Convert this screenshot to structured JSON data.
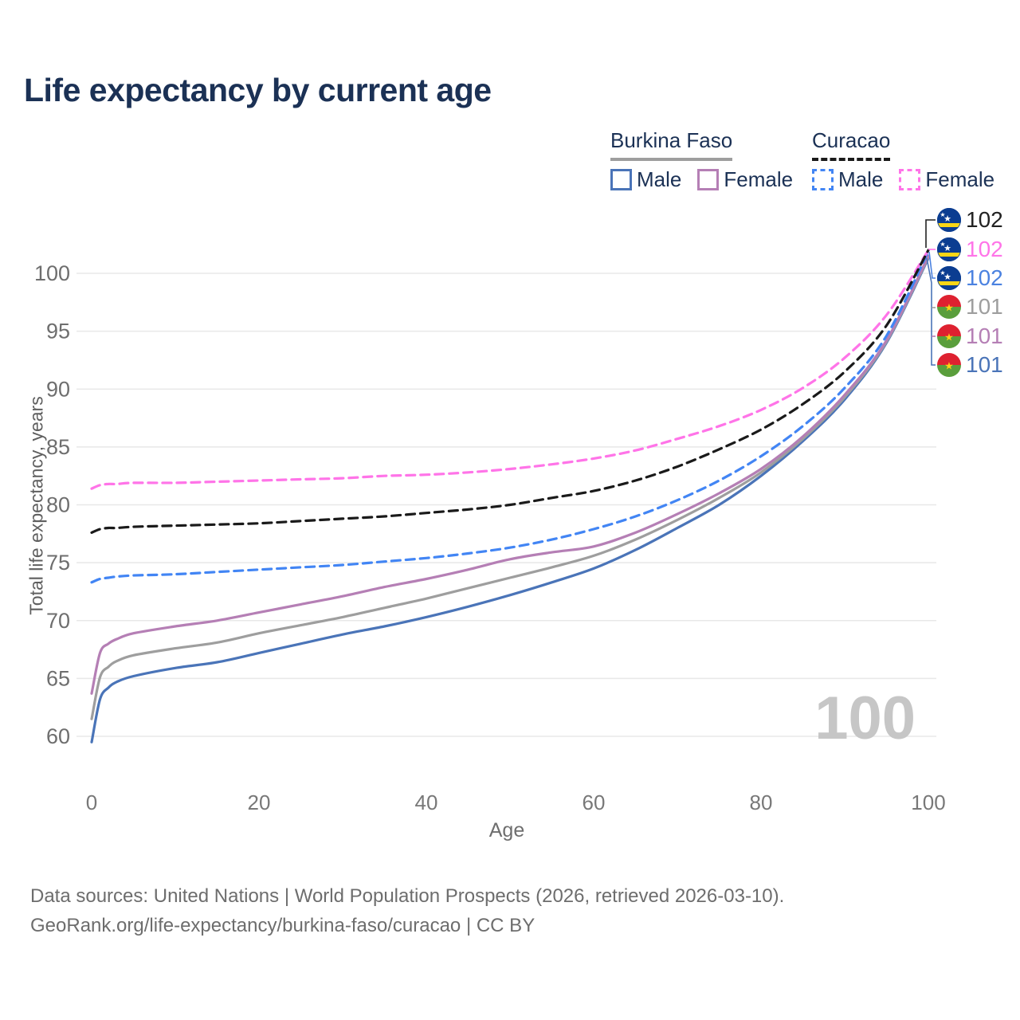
{
  "title": "Life expectancy by current age",
  "legend": {
    "groups": [
      {
        "name": "Burkina Faso",
        "underline": {
          "style": "solid",
          "color": "#9e9e9e"
        },
        "items": [
          {
            "label": "Male",
            "color": "#4a74b8",
            "dash": false
          },
          {
            "label": "Female",
            "color": "#b57fb5",
            "dash": false
          }
        ]
      },
      {
        "name": "Curacao",
        "underline": {
          "style": "dashed",
          "color": "#1a1a1a"
        },
        "items": [
          {
            "label": "Male",
            "color": "#4285f4",
            "dash": true
          },
          {
            "label": "Female",
            "color": "#ff74e8",
            "dash": true
          }
        ]
      }
    ]
  },
  "end_labels": {
    "rows": [
      {
        "flag": "curacao",
        "value": "102",
        "color": "#222222"
      },
      {
        "flag": "curacao",
        "value": "102",
        "color": "#ff74e8"
      },
      {
        "flag": "curacao",
        "value": "102",
        "color": "#4b82e0"
      },
      {
        "flag": "burkina-faso",
        "value": "101",
        "color": "#9e9e9e"
      },
      {
        "flag": "burkina-faso",
        "value": "101",
        "color": "#b57fb5"
      },
      {
        "flag": "burkina-faso",
        "value": "101",
        "color": "#4a74b8"
      }
    ]
  },
  "watermark": "100",
  "footer": {
    "line1": "Data sources: United Nations | World Population Prospects (2026, retrieved 2026-03-10).",
    "line2": "GeoRank.org/life-expectancy/burkina-faso/curacao | CC BY"
  },
  "chart_data": {
    "type": "line",
    "title": "Life expectancy by current age",
    "xlabel": "Age",
    "ylabel": "Total life expectancy, years",
    "xlim": [
      0,
      100
    ],
    "ylim": [
      60,
      100
    ],
    "x_ticks": [
      0,
      20,
      40,
      60,
      80,
      100
    ],
    "y_ticks": [
      60,
      65,
      70,
      75,
      80,
      85,
      90,
      95,
      100
    ],
    "grid": "horizontal-only",
    "legend_position": "top-right",
    "x": [
      0,
      1,
      2,
      3,
      5,
      10,
      15,
      20,
      25,
      30,
      35,
      40,
      45,
      50,
      55,
      60,
      65,
      70,
      75,
      80,
      85,
      90,
      95,
      100
    ],
    "series": [
      {
        "name": "Burkina Faso Male",
        "country": "Burkina Faso",
        "sex": "male",
        "color": "#4a74b8",
        "dash": false,
        "values": [
          59.5,
          63.2,
          64.2,
          64.7,
          65.2,
          65.9,
          66.4,
          67.2,
          68.0,
          68.8,
          69.5,
          70.3,
          71.2,
          72.2,
          73.3,
          74.5,
          76.1,
          78.0,
          80.0,
          82.5,
          85.5,
          89.1,
          94.0,
          101.3
        ]
      },
      {
        "name": "Burkina Faso Total",
        "country": "Burkina Faso",
        "sex": "both",
        "color": "#9e9e9e",
        "dash": false,
        "values": [
          61.5,
          65.1,
          66.0,
          66.5,
          67.0,
          67.6,
          68.1,
          68.9,
          69.6,
          70.3,
          71.1,
          71.9,
          72.8,
          73.7,
          74.6,
          75.6,
          77.0,
          78.7,
          80.6,
          82.8,
          85.7,
          89.3,
          94.1,
          101.4
        ]
      },
      {
        "name": "Burkina Faso Female",
        "country": "Burkina Faso",
        "sex": "female",
        "color": "#b57fb5",
        "dash": false,
        "values": [
          63.7,
          67.2,
          68.0,
          68.4,
          68.9,
          69.5,
          70.0,
          70.7,
          71.4,
          72.1,
          72.9,
          73.6,
          74.4,
          75.3,
          75.9,
          76.4,
          77.6,
          79.2,
          81.0,
          83.1,
          85.9,
          89.5,
          94.2,
          101.5
        ]
      },
      {
        "name": "Curacao Male",
        "country": "Curacao",
        "sex": "male",
        "color": "#4285f4",
        "dash": true,
        "values": [
          73.3,
          73.6,
          73.7,
          73.8,
          73.9,
          74.0,
          74.2,
          74.4,
          74.6,
          74.8,
          75.1,
          75.4,
          75.8,
          76.3,
          77.0,
          77.9,
          79.0,
          80.4,
          82.1,
          84.2,
          86.8,
          90.1,
          94.6,
          101.9
        ]
      },
      {
        "name": "Curacao Female",
        "country": "Curacao",
        "sex": "female",
        "color": "#ff74e8",
        "dash": true,
        "values": [
          81.4,
          81.7,
          81.8,
          81.8,
          81.9,
          81.9,
          82.0,
          82.1,
          82.2,
          82.3,
          82.5,
          82.6,
          82.8,
          83.1,
          83.5,
          84.0,
          84.7,
          85.7,
          86.8,
          88.2,
          90.1,
          92.7,
          96.4,
          102.0
        ]
      },
      {
        "name": "Curacao Total",
        "country": "Curacao",
        "sex": "both",
        "color": "#1a1a1a",
        "dash": true,
        "values": [
          77.6,
          77.9,
          78.0,
          78.0,
          78.1,
          78.2,
          78.3,
          78.4,
          78.6,
          78.8,
          79.0,
          79.3,
          79.6,
          80.0,
          80.6,
          81.2,
          82.1,
          83.3,
          84.8,
          86.5,
          88.7,
          91.5,
          95.5,
          102.0
        ]
      }
    ]
  }
}
